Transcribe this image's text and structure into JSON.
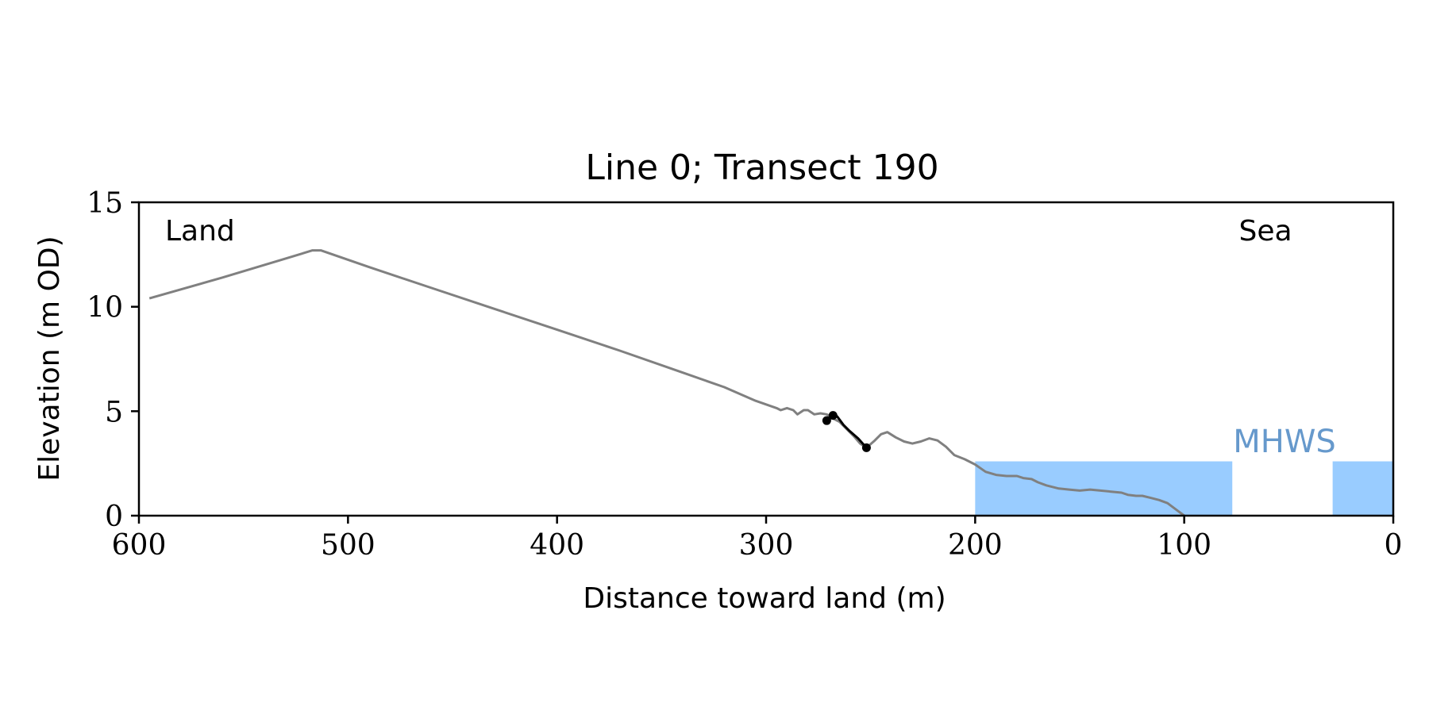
{
  "chart_data": {
    "type": "line",
    "title": "Line 0; Transect 190",
    "xlabel": "Distance toward land (m)",
    "ylabel": "Elevation (m OD)",
    "xlim": [
      600,
      0
    ],
    "ylim": [
      0,
      15
    ],
    "x_ticks": [
      600,
      500,
      400,
      300,
      200,
      100,
      0
    ],
    "y_ticks": [
      0,
      5,
      10,
      15
    ],
    "grid": false,
    "annotations": {
      "left": "Land",
      "right": "Sea"
    },
    "mhws": {
      "label": "MHWS",
      "level": 2.6,
      "color": "#99ccff",
      "label_color": "#6699cc",
      "segments": [
        [
          200,
          77
        ],
        [
          29,
          0
        ]
      ]
    },
    "profile": {
      "color": "#808080",
      "x": [
        595,
        560,
        530,
        517,
        513,
        490,
        460,
        430,
        400,
        370,
        340,
        320,
        305,
        295,
        293,
        290,
        287,
        285,
        282,
        280,
        277,
        274,
        271,
        268,
        265,
        262,
        258,
        255,
        252,
        248,
        245,
        242,
        238,
        234,
        230,
        226,
        222,
        218,
        214,
        210,
        205,
        200,
        195,
        190,
        185,
        180,
        177,
        173,
        170,
        166,
        160,
        155,
        150,
        145,
        140,
        135,
        130,
        127,
        123,
        120,
        116,
        112,
        108,
        104,
        100
      ],
      "y": [
        10.4,
        11.4,
        12.3,
        12.7,
        12.7,
        11.9,
        10.9,
        9.9,
        8.9,
        7.9,
        6.85,
        6.15,
        5.5,
        5.15,
        5.05,
        5.15,
        5.05,
        4.85,
        5.05,
        5.05,
        4.85,
        4.9,
        4.85,
        4.65,
        4.5,
        4.2,
        3.8,
        3.45,
        3.25,
        3.6,
        3.9,
        4.0,
        3.75,
        3.55,
        3.45,
        3.55,
        3.7,
        3.6,
        3.3,
        2.9,
        2.7,
        2.45,
        2.1,
        1.95,
        1.9,
        1.9,
        1.8,
        1.75,
        1.6,
        1.45,
        1.3,
        1.25,
        1.2,
        1.25,
        1.2,
        1.15,
        1.1,
        1.0,
        0.95,
        0.95,
        0.85,
        0.75,
        0.6,
        0.3,
        0.0
      ]
    },
    "measured": {
      "color": "#000000",
      "x": [
        271,
        269,
        267,
        266,
        263,
        260,
        256,
        252
      ],
      "y": [
        4.55,
        4.75,
        4.8,
        4.75,
        4.35,
        4.05,
        3.7,
        3.25
      ],
      "points": [
        [
          271,
          4.55
        ],
        [
          268,
          4.8
        ],
        [
          252,
          3.25
        ]
      ]
    }
  }
}
